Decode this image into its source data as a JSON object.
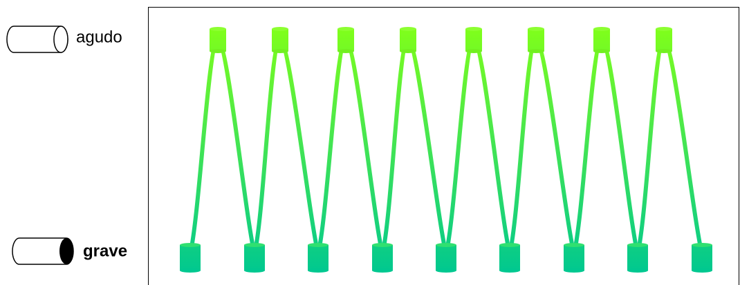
{
  "labels": {
    "high": "agudo",
    "low": "grave"
  }
}
